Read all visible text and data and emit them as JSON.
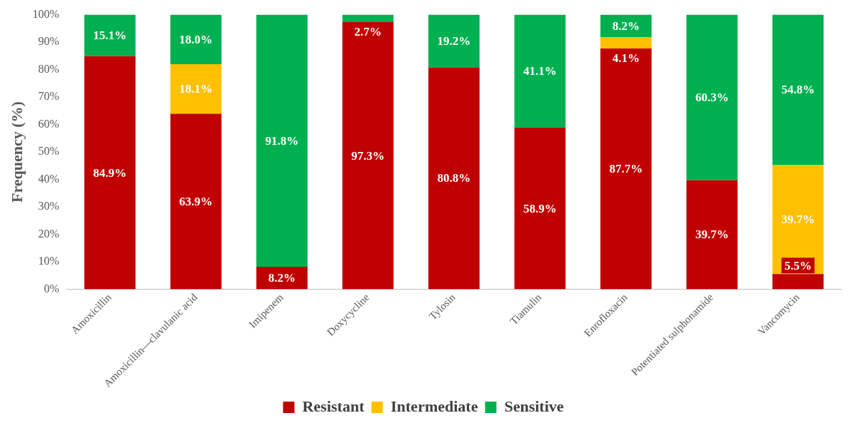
{
  "chart_data": {
    "type": "bar",
    "stacked": true,
    "ylabel": "Frequency (%)",
    "categories": [
      "Amoxicillin",
      "Amoxicillin—clavulanic acid",
      "Imipenem",
      "Doxycycline",
      "Tylosin",
      "Tiamulin",
      "Enrofloxacin",
      "Potentiated sulphonamide",
      "Vancomycin"
    ],
    "series": [
      {
        "name": "Resistant",
        "color": "#c00000",
        "values": [
          84.9,
          63.9,
          8.2,
          97.3,
          80.8,
          58.9,
          87.7,
          39.7,
          5.5
        ],
        "value_labels": [
          "84.9%",
          "63.9%",
          "8.2%",
          "97.3%",
          "80.8%",
          "58.9%",
          "87.7%",
          "39.7%",
          "5.5%"
        ]
      },
      {
        "name": "Intermediate",
        "color": "#ffc000",
        "values": [
          null,
          18.1,
          null,
          null,
          null,
          null,
          4.1,
          null,
          39.7
        ],
        "value_labels": [
          null,
          "18.1%",
          null,
          null,
          null,
          null,
          "4.1%",
          null,
          "39.7%"
        ]
      },
      {
        "name": "Sensitive",
        "color": "#00b050",
        "values": [
          15.1,
          18.0,
          91.8,
          2.7,
          19.2,
          41.1,
          8.2,
          60.3,
          54.8
        ],
        "value_labels": [
          "15.1%",
          "18.0%",
          "91.8%",
          "2.7%",
          "19.2%",
          "41.1%",
          "8.2%",
          "60.3%",
          "54.8%"
        ]
      }
    ],
    "ylim": [
      0,
      100
    ],
    "yticks": [
      {
        "value": 0,
        "label": "0%"
      },
      {
        "value": 10,
        "label": "10%"
      },
      {
        "value": 20,
        "label": "20%"
      },
      {
        "value": 30,
        "label": "30%"
      },
      {
        "value": 40,
        "label": "40%"
      },
      {
        "value": 50,
        "label": "50%"
      },
      {
        "value": 60,
        "label": "60%"
      },
      {
        "value": 70,
        "label": "70%"
      },
      {
        "value": 80,
        "label": "80%"
      },
      {
        "value": 90,
        "label": "90%"
      },
      {
        "value": 100,
        "label": "100%"
      }
    ],
    "grid": false,
    "legend": "bottom"
  }
}
